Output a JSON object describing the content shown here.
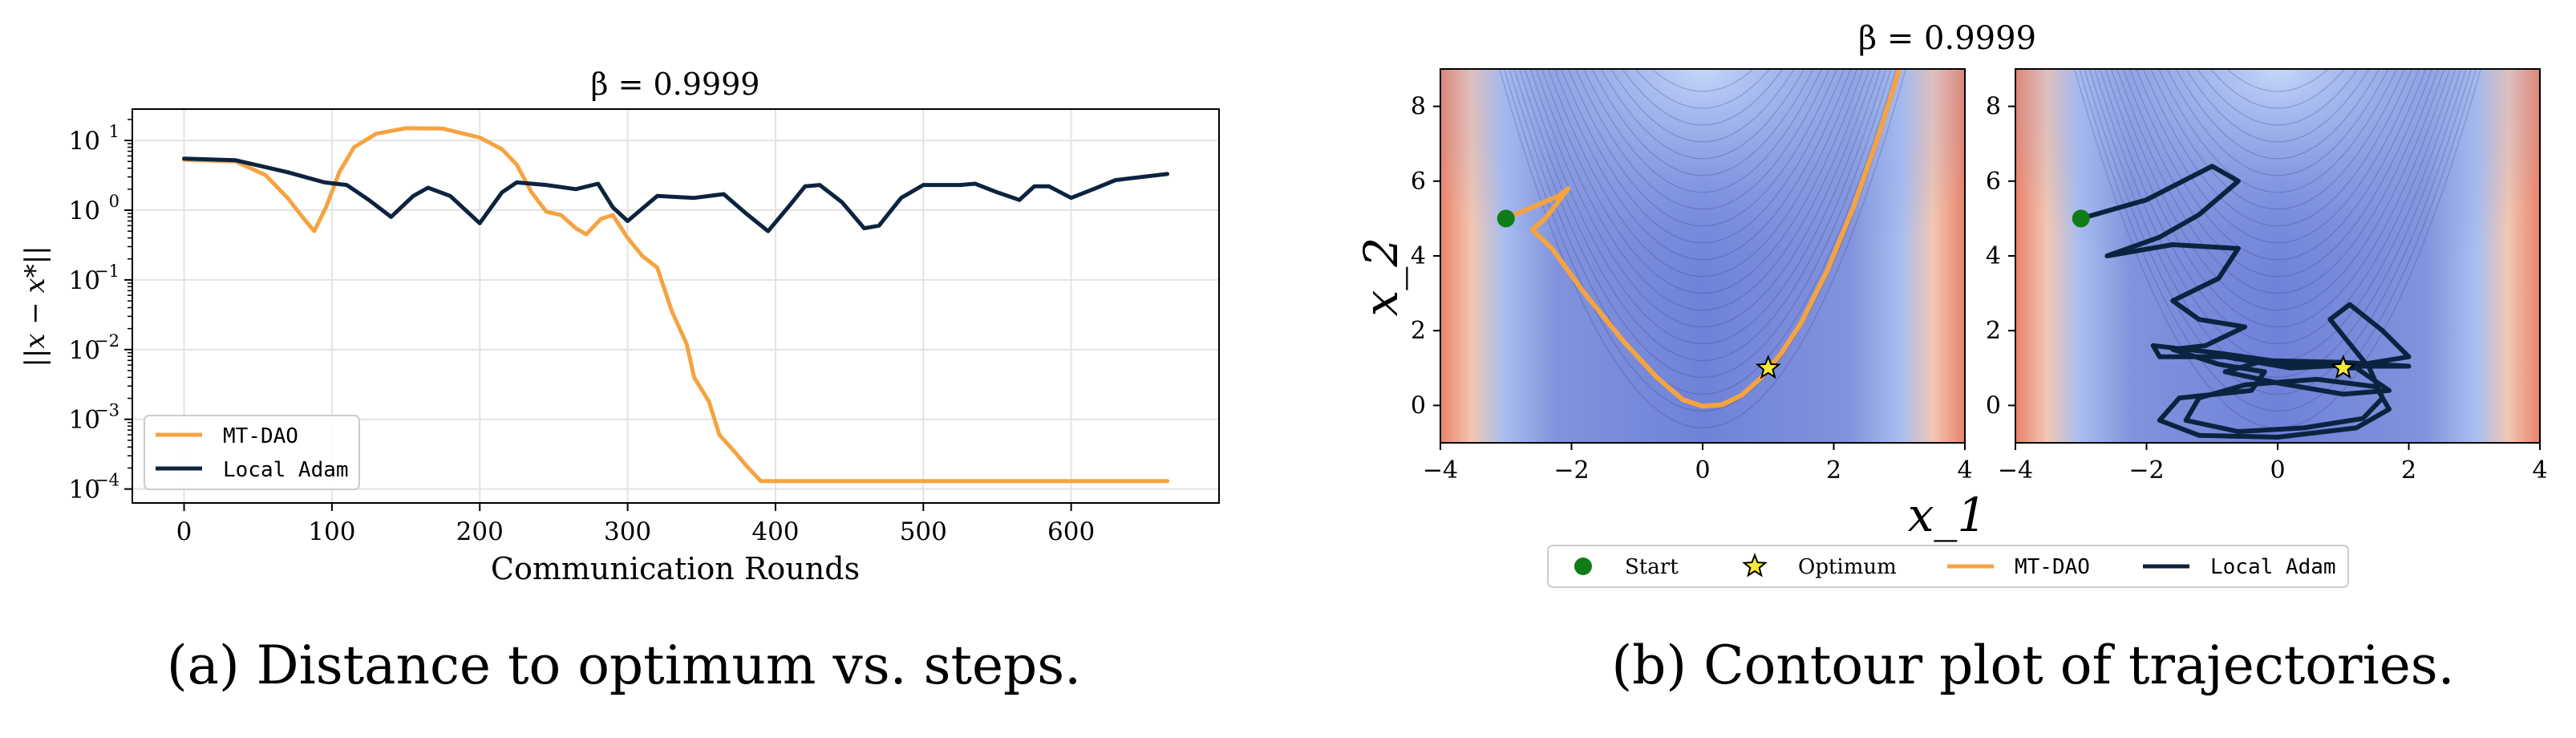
{
  "chart_data": [
    {
      "type": "line",
      "title": "β = 0.9999",
      "xlabel": "Communication Rounds",
      "ylabel": "||x − x*||",
      "xlim": [
        -35,
        700
      ],
      "ylim_log10": [
        -4.2,
        1.45
      ],
      "x_ticks": [
        0,
        100,
        200,
        300,
        400,
        500,
        600
      ],
      "y_ticks_exp": [
        -4,
        -3,
        -2,
        -1,
        0,
        1
      ],
      "grid": true,
      "legend_position": "lower-left",
      "legend": [
        "MT-DAO",
        "Local Adam"
      ],
      "series": [
        {
          "name": "MT-DAO",
          "color": "#f5a341",
          "points": [
            [
              0,
              5.3
            ],
            [
              35,
              5.0
            ],
            [
              55,
              3.2
            ],
            [
              70,
              1.5
            ],
            [
              80,
              0.8
            ],
            [
              88,
              0.5
            ],
            [
              96,
              1.1
            ],
            [
              105,
              3.5
            ],
            [
              115,
              8
            ],
            [
              130,
              12.5
            ],
            [
              150,
              15
            ],
            [
              175,
              14.8
            ],
            [
              200,
              11
            ],
            [
              215,
              7.5
            ],
            [
              225,
              4.5
            ],
            [
              235,
              1.8
            ],
            [
              245,
              0.95
            ],
            [
              255,
              0.85
            ],
            [
              265,
              0.55
            ],
            [
              272,
              0.45
            ],
            [
              282,
              0.75
            ],
            [
              290,
              0.85
            ],
            [
              300,
              0.4
            ],
            [
              310,
              0.22
            ],
            [
              320,
              0.15
            ],
            [
              330,
              0.035
            ],
            [
              340,
              0.012
            ],
            [
              345,
              0.004
            ],
            [
              355,
              0.0018
            ],
            [
              362,
              0.0006
            ],
            [
              372,
              0.00035
            ],
            [
              380,
              0.00022
            ],
            [
              390,
              0.00013
            ],
            [
              400,
              0.00013
            ],
            [
              500,
              0.00013
            ],
            [
              600,
              0.00013
            ],
            [
              665,
              0.00013
            ]
          ]
        },
        {
          "name": "Local Adam",
          "color": "#0c2340",
          "points": [
            [
              0,
              5.5
            ],
            [
              35,
              5.2
            ],
            [
              70,
              3.5
            ],
            [
              95,
              2.5
            ],
            [
              110,
              2.3
            ],
            [
              125,
              1.4
            ],
            [
              140,
              0.8
            ],
            [
              155,
              1.6
            ],
            [
              165,
              2.1
            ],
            [
              180,
              1.6
            ],
            [
              200,
              0.65
            ],
            [
              215,
              1.8
            ],
            [
              225,
              2.5
            ],
            [
              245,
              2.3
            ],
            [
              265,
              2.0
            ],
            [
              280,
              2.4
            ],
            [
              290,
              1.1
            ],
            [
              300,
              0.7
            ],
            [
              320,
              1.6
            ],
            [
              345,
              1.5
            ],
            [
              365,
              1.7
            ],
            [
              380,
              0.9
            ],
            [
              395,
              0.5
            ],
            [
              410,
              1.2
            ],
            [
              420,
              2.2
            ],
            [
              430,
              2.3
            ],
            [
              445,
              1.3
            ],
            [
              460,
              0.55
            ],
            [
              470,
              0.6
            ],
            [
              485,
              1.5
            ],
            [
              500,
              2.3
            ],
            [
              525,
              2.3
            ],
            [
              535,
              2.4
            ],
            [
              550,
              1.8
            ],
            [
              565,
              1.4
            ],
            [
              575,
              2.2
            ],
            [
              585,
              2.2
            ],
            [
              600,
              1.5
            ],
            [
              615,
              2.0
            ],
            [
              630,
              2.7
            ],
            [
              665,
              3.3
            ]
          ]
        }
      ]
    },
    {
      "type": "contour",
      "title": "β = 0.9999",
      "xlabel": "x_1",
      "ylabel": "x_2",
      "xlim": [
        -4,
        4
      ],
      "ylim": [
        -1,
        9
      ],
      "x_ticks": [
        -4,
        -2,
        0,
        2,
        4
      ],
      "y_ticks": [
        0,
        2,
        4,
        6,
        8
      ],
      "legend_position": "bottom-center",
      "legend": [
        "Start",
        "Optimum",
        "MT-DAO",
        "Local Adam"
      ],
      "start": [
        -3,
        5
      ],
      "optimum": [
        1,
        1
      ],
      "panels": [
        {
          "name": "MT-DAO",
          "color": "#f5a341",
          "trajectory": [
            [
              -3,
              5
            ],
            [
              -2.2,
              5.6
            ],
            [
              -2.05,
              5.8
            ],
            [
              -2.4,
              5.0
            ],
            [
              -2.6,
              4.7
            ],
            [
              -2.3,
              4.2
            ],
            [
              -1.8,
              3.0
            ],
            [
              -1.2,
              1.7
            ],
            [
              -0.7,
              0.75
            ],
            [
              -0.3,
              0.15
            ],
            [
              0.0,
              -0.02
            ],
            [
              0.3,
              0.02
            ],
            [
              0.6,
              0.28
            ],
            [
              0.9,
              0.75
            ],
            [
              1.2,
              1.4
            ],
            [
              1.5,
              2.2
            ],
            [
              1.9,
              3.6
            ],
            [
              2.3,
              5.3
            ],
            [
              2.7,
              7.3
            ],
            [
              3.0,
              9.0
            ]
          ]
        },
        {
          "name": "Local Adam",
          "color": "#0c2340",
          "trajectory": [
            [
              -3,
              5
            ],
            [
              -2,
              5.5
            ],
            [
              -1,
              6.4
            ],
            [
              -0.6,
              6.0
            ],
            [
              -1.2,
              5.1
            ],
            [
              -1.8,
              4.5
            ],
            [
              -2.6,
              4.0
            ],
            [
              -1.6,
              4.3
            ],
            [
              -0.6,
              4.2
            ],
            [
              -0.9,
              3.4
            ],
            [
              -1.6,
              2.8
            ],
            [
              -1.2,
              2.3
            ],
            [
              -0.5,
              2.1
            ],
            [
              -1.1,
              1.6
            ],
            [
              -1.6,
              1.5
            ],
            [
              -0.9,
              1.1
            ],
            [
              -0.2,
              0.9
            ],
            [
              -0.4,
              0.4
            ],
            [
              -1.5,
              0.2
            ],
            [
              -1.8,
              -0.4
            ],
            [
              -1.2,
              -0.8
            ],
            [
              0,
              -0.85
            ],
            [
              1.2,
              -0.6
            ],
            [
              1.7,
              -0.1
            ],
            [
              1.5,
              0.5
            ],
            [
              0.6,
              0.7
            ],
            [
              -0.5,
              0.55
            ],
            [
              -1.2,
              0.2
            ],
            [
              -1.4,
              -0.4
            ],
            [
              -0.6,
              -0.7
            ],
            [
              0.4,
              -0.6
            ],
            [
              1.3,
              -0.35
            ],
            [
              1.6,
              0.2
            ],
            [
              1.4,
              1.0
            ],
            [
              0.8,
              2.3
            ],
            [
              1.1,
              2.7
            ],
            [
              1.6,
              2.0
            ],
            [
              2.0,
              1.3
            ],
            [
              1.3,
              1.1
            ],
            [
              0.2,
              1.0
            ],
            [
              -0.8,
              1.3
            ],
            [
              -1.8,
              1.3
            ],
            [
              -1.9,
              1.6
            ],
            [
              -0.9,
              1.4
            ],
            [
              0.3,
              1.1
            ],
            [
              1.3,
              1.05
            ],
            [
              2.0,
              1.05
            ],
            [
              1.0,
              1.15
            ],
            [
              -0.2,
              1.2
            ],
            [
              -0.8,
              0.9
            ],
            [
              0,
              0.6
            ],
            [
              1.0,
              0.3
            ],
            [
              1.7,
              0.4
            ],
            [
              1.2,
              1.0
            ],
            [
              1.0,
              1.0
            ]
          ]
        }
      ]
    }
  ],
  "captions": {
    "a": "(a) Distance to optimum vs. steps.",
    "b": "(b) Contour plot of trajectories."
  }
}
